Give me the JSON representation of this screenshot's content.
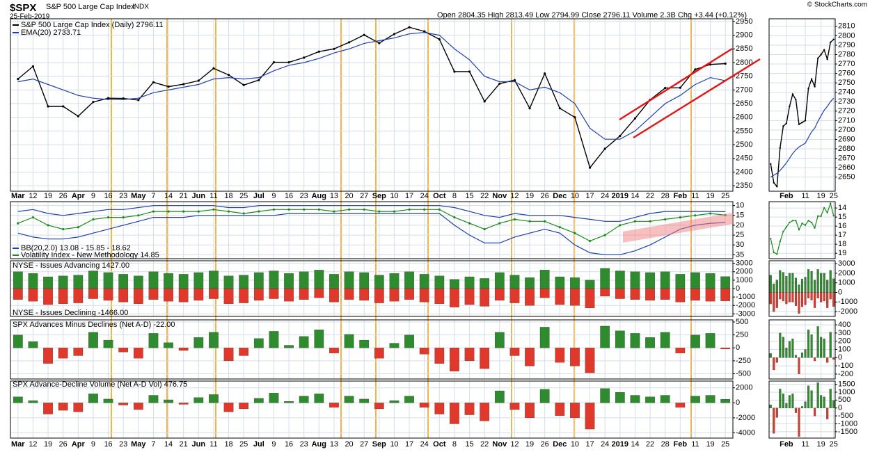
{
  "header": {
    "symbol": "$SPX",
    "name": "S&P 500 Large Cap Index",
    "exchange": "INDX",
    "date": "25-Feb-2019",
    "quote": "Open 2804.35 High 2813.49 Low 2794.99 Close 2796.11 Volume 2.3B Chg +3.44 (+0.12%)",
    "credit": "© StockCharts.com"
  },
  "chart_data": [
    {
      "type": "line",
      "grid": true,
      "categories": [
        "Mar",
        "12",
        "19",
        "26",
        "Apr",
        "9",
        "16",
        "23",
        "May",
        "7",
        "14",
        "21",
        "Jun",
        "11",
        "18",
        "25",
        "Jul",
        "9",
        "16",
        "23",
        "Aug",
        "13",
        "20",
        "27",
        "Sep",
        "10",
        "17",
        "24",
        "Oct",
        "8",
        "15",
        "22",
        "Nov",
        "12",
        "19",
        "26",
        "Dec",
        "10",
        "17",
        "24",
        "2019",
        "14",
        "22",
        "28",
        "Feb",
        "11",
        "19",
        "25"
      ],
      "ylim": [
        2330,
        2960
      ],
      "yticks": [
        2350,
        2400,
        2450,
        2500,
        2550,
        2600,
        2650,
        2700,
        2750,
        2800,
        2850,
        2900,
        2950
      ],
      "series": [
        {
          "name": "S&P 500 Large Cap Index (Daily) 2796.11",
          "color": "#000000",
          "values": [
            2740,
            2786,
            2640,
            2640,
            2604,
            2656,
            2670,
            2669,
            2663,
            2728,
            2712,
            2721,
            2734,
            2779,
            2755,
            2718,
            2736,
            2801,
            2801,
            2818,
            2840,
            2850,
            2874,
            2901,
            2871,
            2904,
            2929,
            2914,
            2885,
            2767,
            2767,
            2658,
            2723,
            2736,
            2633,
            2760,
            2633,
            2600,
            2416,
            2485,
            2532,
            2596,
            2664,
            2707,
            2708,
            2775,
            2793,
            2796.11
          ]
        },
        {
          "name": "EMA(20) 2733.71",
          "color": "#1f3fa8",
          "values": [
            2730,
            2740,
            2720,
            2700,
            2680,
            2670,
            2665,
            2665,
            2670,
            2690,
            2700,
            2710,
            2720,
            2740,
            2745,
            2740,
            2745,
            2770,
            2790,
            2800,
            2815,
            2835,
            2850,
            2870,
            2880,
            2890,
            2905,
            2910,
            2900,
            2850,
            2810,
            2750,
            2730,
            2730,
            2700,
            2710,
            2690,
            2650,
            2560,
            2520,
            2520,
            2550,
            2600,
            2650,
            2680,
            2720,
            2745,
            2733.71
          ]
        }
      ]
    },
    {
      "type": "line",
      "grid": true,
      "ylim": [
        37,
        8
      ],
      "yticks": [
        10,
        15,
        20,
        25,
        30,
        35
      ],
      "bands": {
        "name": "BB(20,2.0) 13.08 - 15.85 - 18.62",
        "color": "#1f3fa8",
        "lower": [
          13,
          12,
          14,
          15,
          14,
          13,
          12,
          12,
          11,
          10,
          10,
          10,
          10,
          10,
          11,
          11,
          10,
          10,
          10,
          10,
          10,
          10,
          10,
          10,
          10,
          10,
          10,
          10,
          10,
          11,
          13,
          15,
          16,
          14,
          15,
          15,
          15,
          16,
          17,
          18,
          18,
          16,
          14,
          13,
          13,
          13,
          13,
          13.08
        ],
        "upper": [
          24,
          26,
          27,
          27,
          26,
          24,
          22,
          20,
          18,
          16,
          16,
          16,
          15,
          15,
          15,
          15,
          15,
          15,
          14,
          14,
          14,
          14,
          14,
          14,
          14,
          14,
          14,
          14,
          14,
          20,
          25,
          29,
          29,
          26,
          24,
          22,
          24,
          30,
          34,
          35,
          35,
          33,
          30,
          26,
          22,
          20,
          19,
          18.62
        ]
      },
      "series": [
        {
          "name": "Volatility Index - New Methodology 14.85",
          "color": "#1a8a1a",
          "values": [
            19,
            16,
            20,
            22,
            21,
            17,
            16,
            16,
            15,
            13,
            13,
            13,
            13,
            12,
            13,
            14,
            13,
            12,
            12,
            12,
            12,
            13,
            12,
            12,
            13,
            13,
            12,
            12,
            12,
            16,
            19,
            22,
            19,
            17,
            18,
            18,
            21,
            24,
            28,
            25,
            20,
            18,
            18,
            17,
            16,
            15,
            14,
            14.85
          ]
        }
      ]
    },
    {
      "type": "bar",
      "grid": true,
      "ylim": [
        -3300,
        3300
      ],
      "yticks": [
        -3000,
        -2000,
        -1000,
        0,
        1000,
        2000,
        3000
      ],
      "series": [
        {
          "name": "NYSE - Issues Advancing 1427.00",
          "color": "#2e8b2e",
          "values": [
            2000,
            1800,
            1400,
            1500,
            1600,
            2100,
            1900,
            1700,
            1500,
            2000,
            1800,
            1700,
            1900,
            2100,
            1500,
            1600,
            1900,
            2100,
            1800,
            2000,
            2200,
            1700,
            2000,
            1900,
            1600,
            1800,
            2000,
            1700,
            1500,
            1100,
            1400,
            1200,
            1900,
            1600,
            1300,
            2200,
            1400,
            1300,
            1000,
            2400,
            2100,
            2000,
            1900,
            2000,
            1700,
            1900,
            1800,
            1427
          ]
        },
        {
          "name": "NYSE - Issues Declining -1466.00",
          "color": "#e0392b",
          "values": [
            -1300,
            -1500,
            -1900,
            -1800,
            -1700,
            -1200,
            -1400,
            -1600,
            -1800,
            -1300,
            -1500,
            -1600,
            -1400,
            -1200,
            -1800,
            -1700,
            -1400,
            -1200,
            -1500,
            -1300,
            -1100,
            -1600,
            -1300,
            -1400,
            -1700,
            -1500,
            -1300,
            -1600,
            -1800,
            -2200,
            -1900,
            -2100,
            -1400,
            -1700,
            -2000,
            -1100,
            -1900,
            -2000,
            -2300,
            -900,
            -1200,
            -1300,
            -1400,
            -1300,
            -1600,
            -1400,
            -1500,
            -1466
          ]
        }
      ]
    },
    {
      "type": "bar",
      "grid": true,
      "ylim": [
        -600,
        540
      ],
      "yticks": [
        -500,
        -250,
        0,
        250,
        500
      ],
      "series": [
        {
          "name": "SPX Advances Minus Declines (Net A-D) -22.00",
          "color": "#2e8b2e",
          "negative_color": "#e0392b",
          "values": [
            250,
            120,
            -300,
            -200,
            -150,
            300,
            150,
            -80,
            -200,
            280,
            100,
            -50,
            200,
            300,
            -250,
            -150,
            180,
            320,
            50,
            220,
            350,
            -100,
            260,
            150,
            -200,
            90,
            250,
            -120,
            -300,
            -450,
            -250,
            -400,
            300,
            -150,
            -350,
            400,
            -280,
            -350,
            -480,
            420,
            330,
            280,
            200,
            300,
            -100,
            250,
            280,
            -22
          ]
        }
      ]
    },
    {
      "type": "bar",
      "grid": true,
      "ylim": [
        -4700,
        2900
      ],
      "yticks": [
        -4000,
        -2000,
        0,
        2000
      ],
      "series": [
        {
          "name": "SPX Advance-Decline Volume (Net A-D Vol) 476.75",
          "color": "#2e8b2e",
          "negative_color": "#e0392b",
          "values": [
            800,
            300,
            -1500,
            -1000,
            -1200,
            1200,
            500,
            -300,
            -900,
            1000,
            400,
            -200,
            700,
            1100,
            -1200,
            -800,
            600,
            1300,
            200,
            900,
            1200,
            -600,
            900,
            500,
            -800,
            300,
            900,
            -600,
            -1500,
            -2800,
            -1600,
            -2400,
            1600,
            -900,
            -2000,
            1800,
            -1700,
            -2000,
            -3500,
            1900,
            1400,
            1000,
            800,
            1000,
            -600,
            900,
            1000,
            476.75
          ]
        }
      ]
    },
    {
      "type": "line",
      "grid": true,
      "categories": [
        null,
        null,
        null,
        null,
        null,
        "Feb",
        null,
        null,
        null,
        null,
        null,
        "11",
        null,
        null,
        null,
        null,
        "19",
        null,
        null,
        null,
        "25"
      ],
      "ylim": [
        2635,
        2818
      ],
      "yticks": [
        2650,
        2660,
        2670,
        2680,
        2690,
        2700,
        2710,
        2720,
        2730,
        2740,
        2750,
        2760,
        2770,
        2780,
        2790,
        2800,
        2810
      ],
      "series": [
        {
          "color": "#000000",
          "values": [
            2664,
            2644,
            2640,
            2681,
            2704,
            2707,
            2725,
            2738,
            2732,
            2706,
            2708,
            2710,
            2744,
            2754,
            2746,
            2776,
            2780,
            2785,
            2775,
            2793,
            2796.11
          ]
        },
        {
          "color": "#1f3fa8",
          "values": [
            2650,
            2652,
            2654,
            2657,
            2661,
            2665,
            2670,
            2675,
            2679,
            2682,
            2684,
            2686,
            2692,
            2698,
            2702,
            2709,
            2715,
            2721,
            2725,
            2730,
            2733.71
          ]
        }
      ]
    },
    {
      "type": "line",
      "grid": true,
      "ylim": [
        19.6,
        13.3
      ],
      "yticks": [
        14,
        15,
        16,
        17,
        18,
        19
      ],
      "series": [
        {
          "color": "#1a8a1a",
          "values": [
            17.4,
            18.9,
            19.1,
            17.7,
            16.6,
            16.1,
            15.6,
            15.4,
            15.4,
            16.4,
            15.7,
            15.9,
            15.4,
            15.6,
            16.2,
            14.9,
            14.9,
            14.0,
            14.5,
            13.5,
            14.85
          ]
        }
      ]
    },
    {
      "type": "bar",
      "grid": true,
      "ylim": [
        -2500,
        3300
      ],
      "yticks": [
        -2000,
        -1000,
        0,
        1000,
        2000,
        3000
      ],
      "series": [
        {
          "color": "#2e8b2e",
          "values": [
            1800,
            900,
            1300,
            2300,
            2100,
            1700,
            2000,
            2000,
            1500,
            800,
            1400,
            1600,
            2400,
            2200,
            1300,
            2400,
            2000,
            2000,
            1300,
            2300,
            1427
          ]
        },
        {
          "color": "#e0392b",
          "values": [
            -1200,
            -2000,
            -1600,
            -700,
            -900,
            -1200,
            -1000,
            -1000,
            -1400,
            -2200,
            -1500,
            -1300,
            -600,
            -800,
            -1600,
            -600,
            -1000,
            -900,
            -1600,
            -700,
            -1466
          ]
        }
      ]
    },
    {
      "type": "bar",
      "grid": true,
      "ylim": [
        -260,
        460
      ],
      "yticks": [
        -200,
        -100,
        0,
        100,
        200,
        300,
        400
      ],
      "series": [
        {
          "color": "#2e8b2e",
          "negative_color": "#e0392b",
          "values": [
            50,
            -150,
            -60,
            300,
            250,
            120,
            200,
            230,
            30,
            -200,
            60,
            100,
            340,
            280,
            -40,
            380,
            250,
            230,
            -60,
            310,
            -22
          ]
        }
      ]
    },
    {
      "type": "bar",
      "grid": true,
      "ylim": [
        -1900,
        1700
      ],
      "yticks": [
        -1500,
        -1000,
        -500,
        0,
        500,
        1000,
        1500
      ],
      "series": [
        {
          "color": "#2e8b2e",
          "negative_color": "#e0392b",
          "values": [
            200,
            -1600,
            -600,
            1200,
            900,
            300,
            800,
            900,
            -300,
            -1800,
            100,
            400,
            1400,
            1100,
            -500,
            1600,
            800,
            700,
            -700,
            1200,
            476.75
          ]
        }
      ]
    }
  ]
}
